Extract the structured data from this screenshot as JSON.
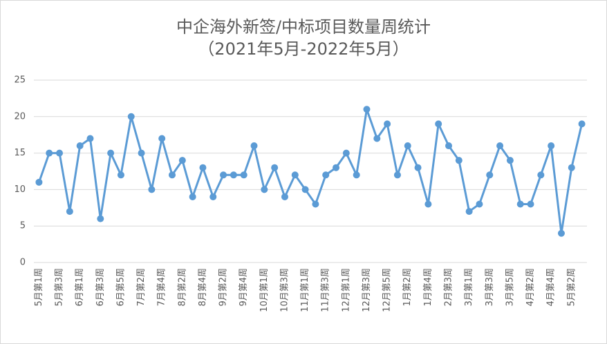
{
  "chart_data": {
    "type": "line",
    "title": "中企海外新签/中标项目数量周统计",
    "subtitle": "（2021年5月-2022年5月）",
    "categories": [
      "5月第1周",
      null,
      "5月第3周",
      null,
      "6月第1周",
      null,
      "6月第3周",
      null,
      "6月第5周",
      null,
      "7月第2周",
      null,
      "7月第4周",
      null,
      "8月第2周",
      null,
      "8月第4周",
      null,
      "9月第2周",
      null,
      "9月第4周",
      null,
      "10月第1周",
      null,
      "10月第3周",
      null,
      "11月第1周",
      null,
      "11月第3周",
      null,
      "12月第1周",
      null,
      "12月第3周",
      null,
      "12月第5周",
      null,
      "1月第2周",
      null,
      "1月第4周",
      null,
      "2月第3周",
      null,
      "3月第1周",
      null,
      "3月第3周",
      null,
      "3月第5周",
      null,
      "4月第2周",
      null,
      "4月第4周",
      null,
      "5月第2周",
      null
    ],
    "values": [
      11,
      15,
      15,
      7,
      16,
      17,
      6,
      15,
      12,
      20,
      15,
      10,
      17,
      12,
      14,
      9,
      13,
      9,
      12,
      12,
      12,
      16,
      10,
      13,
      9,
      12,
      10,
      8,
      12,
      13,
      15,
      12,
      21,
      17,
      19,
      12,
      16,
      13,
      8,
      19,
      16,
      14,
      7,
      8,
      12,
      16,
      14,
      8,
      8,
      12,
      16,
      4,
      13,
      19
    ],
    "color": "#5b9bd5",
    "ylim": [
      0,
      25
    ],
    "yticks": [
      0,
      5,
      10,
      15,
      20,
      25
    ],
    "grid": true
  }
}
